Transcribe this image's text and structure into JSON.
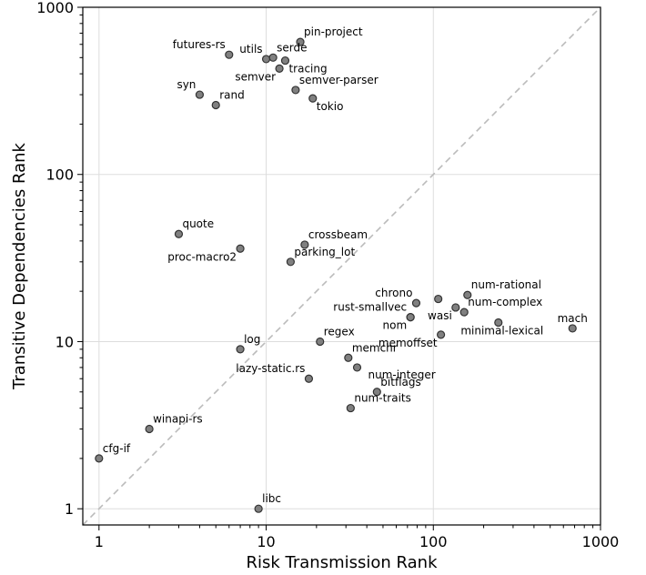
{
  "chart_data": {
    "type": "scatter",
    "title": "",
    "xlabel": "Risk Transmission Rank",
    "ylabel": "Transitive Dependencies Rank",
    "xscale": "log",
    "yscale": "log",
    "xlim": [
      0.8,
      1000
    ],
    "ylim": [
      0.8,
      1000
    ],
    "x_ticks": [
      1,
      10,
      100,
      1000
    ],
    "y_ticks": [
      1,
      10,
      100,
      1000
    ],
    "x_tick_labels": [
      "1",
      "10",
      "100",
      "1000"
    ],
    "y_tick_labels": [
      "1",
      "10",
      "100",
      "1000"
    ],
    "grid": true,
    "reference_line": "y = x (dashed)",
    "colors": {
      "marker_fill": "#808080",
      "marker_edge": "#333333",
      "grid": "#dddddd",
      "reference": "#bbbbbb"
    },
    "points": [
      {
        "label": "futures-rs",
        "x": 6,
        "y": 520,
        "label_pos": "left-above"
      },
      {
        "label": "utils",
        "x": 10,
        "y": 490,
        "label_pos": "left-above"
      },
      {
        "label": "serde",
        "x": 11,
        "y": 500,
        "label_pos": "right-above"
      },
      {
        "label": "pin-project",
        "x": 16,
        "y": 620,
        "label_pos": "right-above"
      },
      {
        "label": "tracing",
        "x": 13,
        "y": 480,
        "label_pos": "right-below"
      },
      {
        "label": "semver",
        "x": 12,
        "y": 430,
        "label_pos": "left-below"
      },
      {
        "label": "semver-parser",
        "x": 15,
        "y": 320,
        "label_pos": "right-above"
      },
      {
        "label": "tokio",
        "x": 19,
        "y": 285,
        "label_pos": "right-below"
      },
      {
        "label": "syn",
        "x": 4,
        "y": 300,
        "label_pos": "left-above"
      },
      {
        "label": "rand",
        "x": 5,
        "y": 260,
        "label_pos": "right-above"
      },
      {
        "label": "quote",
        "x": 3,
        "y": 44,
        "label_pos": "right-above"
      },
      {
        "label": "proc-macro2",
        "x": 7,
        "y": 36,
        "label_pos": "left-below"
      },
      {
        "label": "crossbeam",
        "x": 17,
        "y": 38,
        "label_pos": "right-above"
      },
      {
        "label": "parking_lot",
        "x": 14,
        "y": 30,
        "label_pos": "right-above"
      },
      {
        "label": "log",
        "x": 7,
        "y": 9,
        "label_pos": "right-above"
      },
      {
        "label": "regex",
        "x": 21,
        "y": 10,
        "label_pos": "right-above"
      },
      {
        "label": "lazy-static.rs",
        "x": 18,
        "y": 6,
        "label_pos": "left-above"
      },
      {
        "label": "memchr",
        "x": 31,
        "y": 8,
        "label_pos": "right-above"
      },
      {
        "label": "num-integer",
        "x": 35,
        "y": 7,
        "label_pos": "far-right-above"
      },
      {
        "label": "bitflags",
        "x": 46,
        "y": 5,
        "label_pos": "right-above"
      },
      {
        "label": "num-traits",
        "x": 32,
        "y": 4,
        "label_pos": "right-above"
      },
      {
        "label": "chrono",
        "x": 79,
        "y": 17,
        "label_pos": "left-above"
      },
      {
        "label": "rust-smallvec",
        "x": 73,
        "y": 14,
        "label_pos": "left-above"
      },
      {
        "label": "nom",
        "x": 73,
        "y": 14,
        "label_pos": "left-below"
      },
      {
        "label": "memoffset",
        "x": 111,
        "y": 11,
        "label_pos": "left-below"
      },
      {
        "label": "wasi",
        "x": 136,
        "y": 16,
        "label_pos": "left-below"
      },
      {
        "label": "num-rational",
        "x": 160,
        "y": 19,
        "label_pos": "right-above"
      },
      {
        "label": "num-complex",
        "x": 153,
        "y": 15,
        "label_pos": "right-above"
      },
      {
        "label": "",
        "x": 107,
        "y": 18,
        "label_pos": "none"
      },
      {
        "label": "minimal-lexical",
        "x": 245,
        "y": 13,
        "label_pos": "below"
      },
      {
        "label": "mach",
        "x": 680,
        "y": 12,
        "label_pos": "above"
      },
      {
        "label": "winapi-rs",
        "x": 2,
        "y": 3,
        "label_pos": "right-above"
      },
      {
        "label": "cfg-if",
        "x": 1,
        "y": 2,
        "label_pos": "right-above"
      },
      {
        "label": "libc",
        "x": 9,
        "y": 1,
        "label_pos": "right-above"
      }
    ]
  }
}
